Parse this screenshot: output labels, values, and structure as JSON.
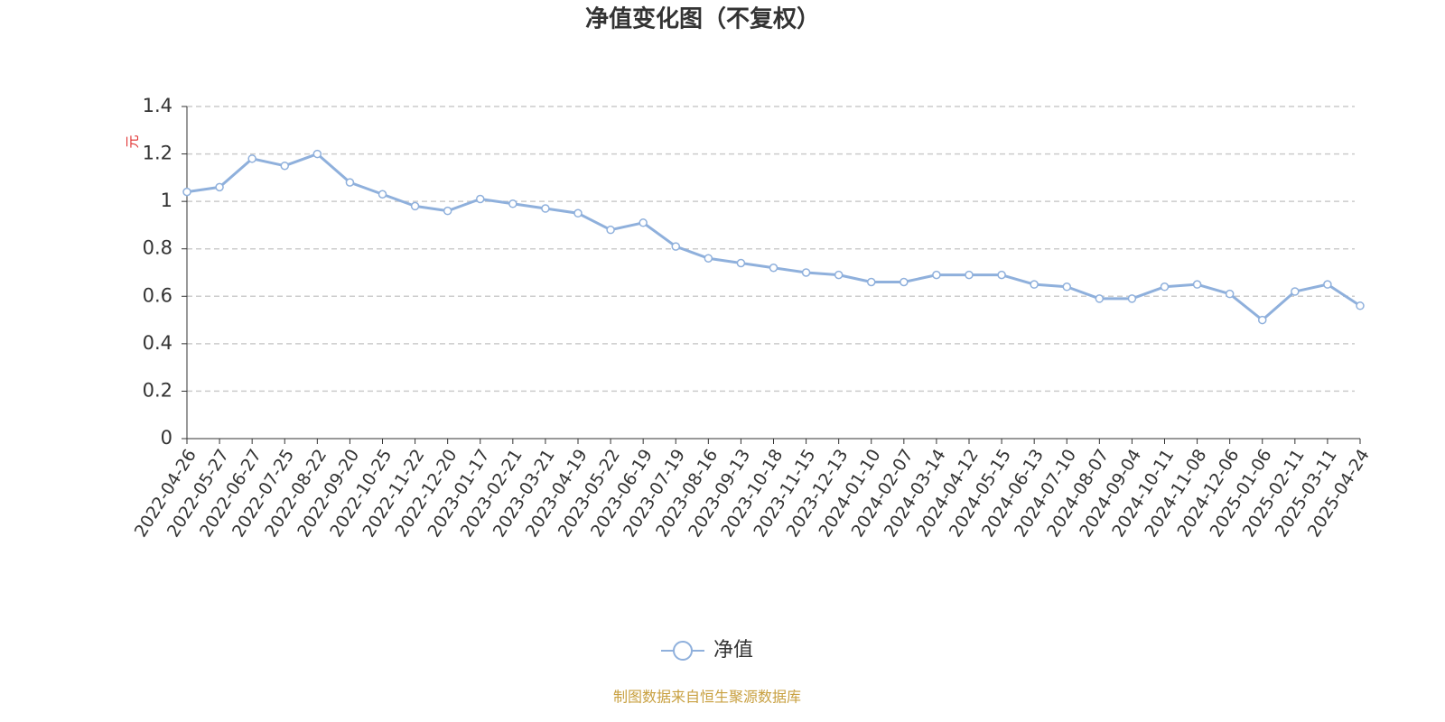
{
  "chart_data": {
    "type": "line",
    "title": "净值变化图（不复权）",
    "y_label": "元",
    "footer": "制图数据来自恒生聚源数据库",
    "categories": [
      "2022-04-26",
      "2022-05-27",
      "2022-06-27",
      "2022-07-25",
      "2022-08-22",
      "2022-09-20",
      "2022-10-25",
      "2022-11-22",
      "2022-12-20",
      "2023-01-17",
      "2023-02-21",
      "2023-03-21",
      "2023-04-19",
      "2023-05-22",
      "2023-06-19",
      "2023-07-19",
      "2023-08-16",
      "2023-09-13",
      "2023-10-18",
      "2023-11-15",
      "2023-12-13",
      "2024-01-10",
      "2024-02-07",
      "2024-03-14",
      "2024-04-12",
      "2024-05-15",
      "2024-06-13",
      "2024-07-10",
      "2024-08-07",
      "2024-09-04",
      "2024-10-11",
      "2024-11-08",
      "2024-12-06",
      "2025-01-06",
      "2025-02-11",
      "2025-03-11",
      "2025-04-24"
    ],
    "series": [
      {
        "name": "净值",
        "color": "#8fb0dc",
        "values": [
          1.04,
          1.06,
          1.18,
          1.15,
          1.2,
          1.08,
          1.03,
          0.98,
          0.96,
          1.01,
          0.99,
          0.97,
          0.95,
          0.88,
          0.91,
          0.81,
          0.76,
          0.74,
          0.72,
          0.7,
          0.69,
          0.66,
          0.66,
          0.69,
          0.69,
          0.69,
          0.65,
          0.64,
          0.59,
          0.59,
          0.64,
          0.65,
          0.61,
          0.5,
          0.62,
          0.65,
          0.56
        ]
      }
    ],
    "ylim": [
      0,
      1.4
    ],
    "yticks": [
      0,
      0.2,
      0.4,
      0.6,
      0.8,
      1,
      1.2,
      1.4
    ],
    "grid": true
  }
}
